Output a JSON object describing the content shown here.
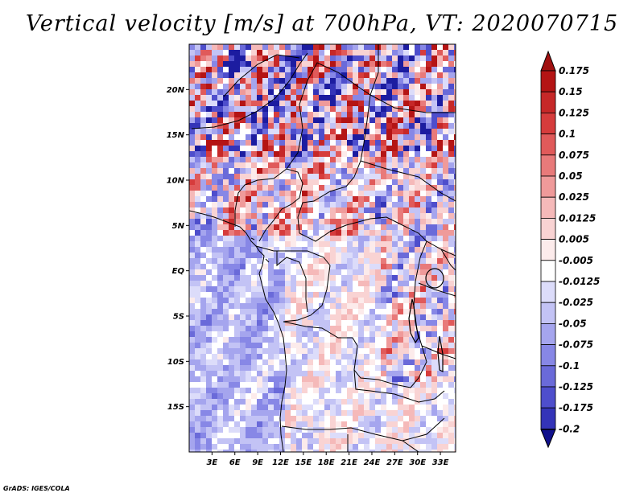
{
  "title": "Vertical velocity [m/s] at 700hPa, VT: 2020070715",
  "credit": "GrADS: IGES/COLA",
  "map": {
    "lat_range": [
      -20,
      25
    ],
    "lon_range": [
      0,
      35
    ],
    "lat_ticks": [
      {
        "value": 20,
        "label": "20N"
      },
      {
        "value": 15,
        "label": "15N"
      },
      {
        "value": 10,
        "label": "10N"
      },
      {
        "value": 5,
        "label": "5N"
      },
      {
        "value": 0,
        "label": "EQ"
      },
      {
        "value": -5,
        "label": "5S"
      },
      {
        "value": -10,
        "label": "10S"
      },
      {
        "value": -15,
        "label": "15S"
      }
    ],
    "lon_ticks": [
      {
        "value": 3,
        "label": "3E"
      },
      {
        "value": 6,
        "label": "6E"
      },
      {
        "value": 9,
        "label": "9E"
      },
      {
        "value": 12,
        "label": "12E"
      },
      {
        "value": 15,
        "label": "15E"
      },
      {
        "value": 18,
        "label": "18E"
      },
      {
        "value": 21,
        "label": "21E"
      },
      {
        "value": 24,
        "label": "24E"
      },
      {
        "value": 27,
        "label": "27E"
      },
      {
        "value": 30,
        "label": "30E"
      },
      {
        "value": 33,
        "label": "33E"
      }
    ],
    "lakes": [
      "Lake Victoria",
      "Lake Tanganyika",
      "Lake Malawi"
    ]
  },
  "colorbar": {
    "levels": [
      {
        "label": "0.175",
        "color": "#b41414"
      },
      {
        "label": "0.15",
        "color": "#c62828"
      },
      {
        "label": "0.125",
        "color": "#d63c3c"
      },
      {
        "label": "0.1",
        "color": "#e05a5a"
      },
      {
        "label": "0.075",
        "color": "#e87a7a"
      },
      {
        "label": "0.05",
        "color": "#ef9a9a"
      },
      {
        "label": "0.025",
        "color": "#f5b9b9"
      },
      {
        "label": "0.0125",
        "color": "#f9d3d3"
      },
      {
        "label": "0.005",
        "color": "#fcebeb"
      },
      {
        "label": "-0.005",
        "color": "#ffffff"
      },
      {
        "label": "-0.0125",
        "color": "#dcdcfa"
      },
      {
        "label": "-0.025",
        "color": "#c3c3f5"
      },
      {
        "label": "-0.05",
        "color": "#a5a5ee"
      },
      {
        "label": "-0.075",
        "color": "#8787e6"
      },
      {
        "label": "-0.1",
        "color": "#6a6ad9"
      },
      {
        "label": "-0.125",
        "color": "#4e4ecc"
      },
      {
        "label": "-0.175",
        "color": "#3434b8"
      },
      {
        "label": "-0.2",
        "color": "#1c1ca0"
      }
    ],
    "top_cap_color": "#a01010",
    "bottom_cap_color": "#10108c"
  }
}
